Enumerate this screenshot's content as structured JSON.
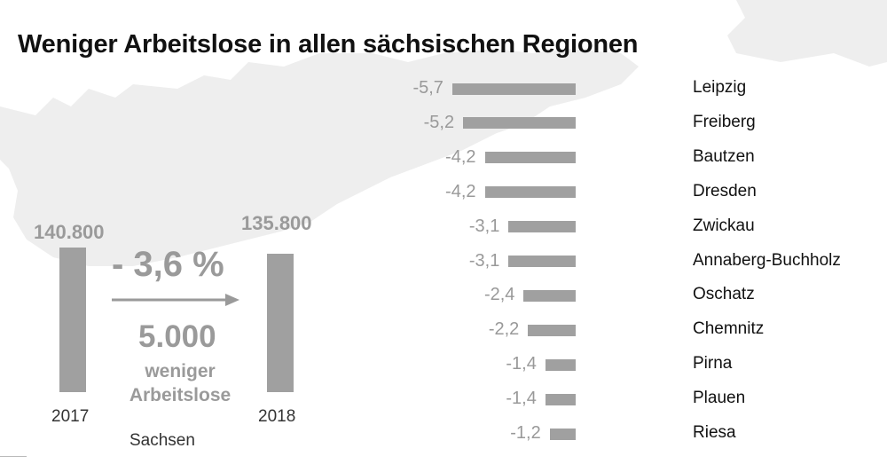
{
  "title": "Weniger Arbeitslose in allen sächsischen Regionen",
  "colors": {
    "bar": "#a0a0a0",
    "label_gray": "#9a9a9a",
    "map": "#eeeeee"
  },
  "summary": {
    "region": "Sachsen",
    "year_2017": "2017",
    "value_2017": "140.800",
    "year_2018": "2018",
    "value_2018": "135.800",
    "change_percent": "- 3,6 %",
    "difference": "5.000",
    "text_line1": "weniger",
    "text_line2": "Arbeitslose"
  },
  "chart_data": [
    {
      "type": "bar",
      "title": "Sachsen",
      "categories": [
        "2017",
        "2018"
      ],
      "values": [
        140800,
        135800
      ],
      "value_labels": [
        "140.800",
        "135.800"
      ],
      "annotation": "- 3,6 %"
    },
    {
      "type": "bar",
      "orientation": "horizontal",
      "title": "Weniger Arbeitslose in allen sächsischen Regionen",
      "categories": [
        "Leipzig",
        "Freiberg",
        "Bautzen",
        "Dresden",
        "Zwickau",
        "Annaberg-Buchholz",
        "Oschatz",
        "Chemnitz",
        "Pirna",
        "Plauen",
        "Riesa"
      ],
      "values": [
        -5.7,
        -5.2,
        -4.2,
        -4.2,
        -3.1,
        -3.1,
        -2.4,
        -2.2,
        -1.4,
        -1.4,
        -1.2
      ],
      "value_labels": [
        "-5,7",
        "-5,2",
        "-4,2",
        "-4,2",
        "-3,1",
        "-3,1",
        "-2,4",
        "-2,2",
        "-1,4",
        "-1,4",
        "-1,2"
      ]
    }
  ]
}
